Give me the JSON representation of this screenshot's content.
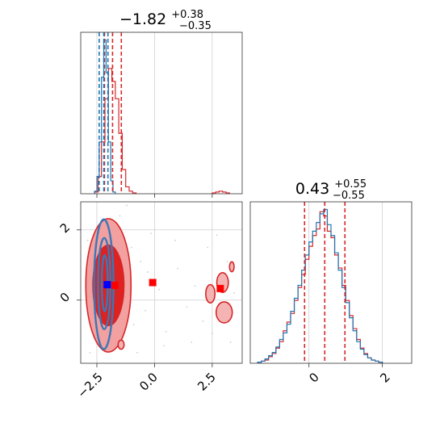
{
  "chart_data": [
    {
      "type": "histogram",
      "panel": "top-left marginal",
      "title": {
        "median": "−1.82",
        "plus": "+0.38",
        "minus": "−0.35"
      },
      "xlim": [
        -3.2,
        3.8
      ],
      "x_ticks": [
        -2.5,
        0.0,
        2.5
      ],
      "grid": true,
      "quantile_lines": [
        {
          "name": "red",
          "color": "#d62728",
          "values": [
            -2.17,
            -1.82,
            -1.44
          ]
        },
        {
          "name": "blue",
          "color": "#1f77b4",
          "values": [
            -2.4,
            -2.2,
            -2.02
          ]
        }
      ],
      "series": [
        {
          "name": "red",
          "color": "#d62728",
          "bin_edges": [
            -2.6,
            -2.45,
            -2.3,
            -2.15,
            -2.0,
            -1.85,
            -1.7,
            -1.55,
            -1.4,
            -1.25,
            -1.1,
            -0.95,
            -0.8
          ],
          "counts": [
            2,
            20,
            60,
            110,
            145,
            130,
            110,
            70,
            28,
            8,
            3,
            1
          ]
        },
        {
          "name": "blue",
          "color": "#1f77b4",
          "bin_edges": [
            -2.6,
            -2.5,
            -2.4,
            -2.3,
            -2.2,
            -2.1,
            -2.0,
            -1.9,
            -1.8,
            -1.7
          ],
          "counts": [
            3,
            20,
            60,
            135,
            178,
            140,
            60,
            15,
            2
          ]
        },
        {
          "name": "red-tail",
          "color": "#d62728",
          "bin_edges": [
            2.5,
            2.65,
            2.8,
            2.95,
            3.1,
            3.25
          ],
          "counts": [
            1,
            2,
            3,
            2,
            1
          ]
        }
      ]
    },
    {
      "type": "contour",
      "panel": "bottom-left joint",
      "xlim": [
        -3.2,
        3.8
      ],
      "ylim": [
        -1.8,
        2.8
      ],
      "x_ticks": [
        -2.5,
        0.0,
        2.5
      ],
      "y_ticks": [
        0,
        2
      ],
      "tick_labels_x": [
        "−2.5",
        "0.0",
        "2.5"
      ],
      "tick_labels_y": [
        "0",
        "2"
      ],
      "grid": true,
      "markers": [
        {
          "color": "#ff0000",
          "x": -1.72,
          "y": 0.42
        },
        {
          "color": "#0000ff",
          "x": -2.05,
          "y": 0.44
        },
        {
          "color": "#ff0000",
          "x": -0.08,
          "y": 0.5
        },
        {
          "color": "#ff0000",
          "x": 2.85,
          "y": 0.33
        }
      ],
      "red_contours": {
        "main": {
          "center": [
            -2.0,
            0.42
          ],
          "outer": [
            0.98,
            1.9
          ],
          "inner": [
            0.68,
            1.15
          ]
        },
        "side_blobs": [
          {
            "center": [
              2.42,
              0.18
            ],
            "radii": [
              0.2,
              0.26
            ]
          },
          {
            "center": [
              2.95,
              0.5
            ],
            "radii": [
              0.25,
              0.28
            ]
          },
          {
            "center": [
              3.02,
              -0.35
            ],
            "radii": [
              0.35,
              0.3
            ]
          },
          {
            "center": [
              3.35,
              0.95
            ],
            "radii": [
              0.1,
              0.14
            ]
          },
          {
            "center": [
              -1.45,
              -1.27
            ],
            "radii": [
              0.13,
              0.13
            ]
          }
        ]
      },
      "blue_contours": {
        "levels": [
          {
            "center": [
              -2.2,
              0.45
            ],
            "radii": [
              0.42,
              1.85
            ]
          },
          {
            "center": [
              -2.18,
              0.47
            ],
            "radii": [
              0.27,
              1.3
            ]
          },
          {
            "center": [
              -2.16,
              0.48
            ],
            "radii": [
              0.13,
              0.8
            ]
          }
        ]
      },
      "scatter": [
        [
          -2.0,
          2.1
        ],
        [
          -1.5,
          2.4
        ],
        [
          -2.9,
          1.7
        ],
        [
          -1.0,
          1.5
        ],
        [
          -0.6,
          1.1
        ],
        [
          -0.3,
          0.8
        ],
        [
          0.2,
          0.3
        ],
        [
          -0.9,
          -0.7
        ],
        [
          -0.4,
          -0.3
        ],
        [
          0.5,
          -0.9
        ],
        [
          1.0,
          0.9
        ],
        [
          1.4,
          -0.2
        ],
        [
          2.3,
          1.5
        ],
        [
          2.7,
          1.85
        ],
        [
          3.15,
          1.1
        ],
        [
          2.1,
          -0.6
        ],
        [
          2.5,
          -0.95
        ],
        [
          3.45,
          0.2
        ],
        [
          -2.8,
          -1.5
        ],
        [
          -1.2,
          2.7
        ],
        [
          -0.15,
          1.9
        ],
        [
          0.9,
          1.7
        ],
        [
          1.75,
          0.4
        ],
        [
          -2.95,
          0.4
        ],
        [
          -0.75,
          -1.5
        ],
        [
          0.4,
          -1.3
        ],
        [
          1.6,
          -1.2
        ],
        [
          3.3,
          -1.2
        ]
      ]
    },
    {
      "type": "histogram",
      "panel": "bottom-right marginal",
      "title": {
        "median": "0.43",
        "plus": "+0.55",
        "minus": "−0.55"
      },
      "xlim": [
        -1.6,
        2.8
      ],
      "x_ticks": [
        0,
        2
      ],
      "tick_labels_x": [
        "0",
        "2"
      ],
      "grid": true,
      "quantile_lines": [
        {
          "name": "red",
          "color": "#d62728",
          "values": [
            -0.12,
            0.43,
            0.98
          ]
        }
      ],
      "series": [
        {
          "name": "red",
          "color": "#d62728",
          "bin_edges": [
            -1.4,
            -1.3,
            -1.2,
            -1.1,
            -1.0,
            -0.9,
            -0.8,
            -0.7,
            -0.6,
            -0.5,
            -0.4,
            -0.3,
            -0.2,
            -0.1,
            0.0,
            0.1,
            0.2,
            0.3,
            0.4,
            0.5,
            0.6,
            0.7,
            0.8,
            0.9,
            1.0,
            1.1,
            1.2,
            1.3,
            1.4,
            1.5,
            1.6,
            1.7,
            1.8,
            1.9,
            2.0
          ],
          "counts": [
            1,
            2,
            3,
            6,
            9,
            14,
            20,
            30,
            38,
            46,
            58,
            70,
            82,
            96,
            108,
            118,
            124,
            140,
            136,
            122,
            116,
            100,
            88,
            72,
            58,
            44,
            32,
            22,
            14,
            9,
            5,
            3,
            2,
            1
          ]
        },
        {
          "name": "blue",
          "color": "#1f77b4",
          "bin_edges": [
            -1.4,
            -1.3,
            -1.2,
            -1.1,
            -1.0,
            -0.9,
            -0.8,
            -0.7,
            -0.6,
            -0.5,
            -0.4,
            -0.3,
            -0.2,
            -0.1,
            0.0,
            0.1,
            0.2,
            0.3,
            0.4,
            0.5,
            0.6,
            0.7,
            0.8,
            0.9,
            1.0,
            1.1,
            1.2,
            1.3,
            1.4,
            1.5,
            1.6,
            1.7,
            1.8,
            1.9,
            2.0
          ],
          "counts": [
            1,
            2,
            4,
            7,
            10,
            15,
            22,
            28,
            36,
            48,
            60,
            72,
            86,
            100,
            112,
            122,
            130,
            138,
            142,
            128,
            118,
            102,
            86,
            70,
            56,
            42,
            30,
            20,
            13,
            8,
            5,
            3,
            2,
            1
          ]
        }
      ]
    }
  ]
}
